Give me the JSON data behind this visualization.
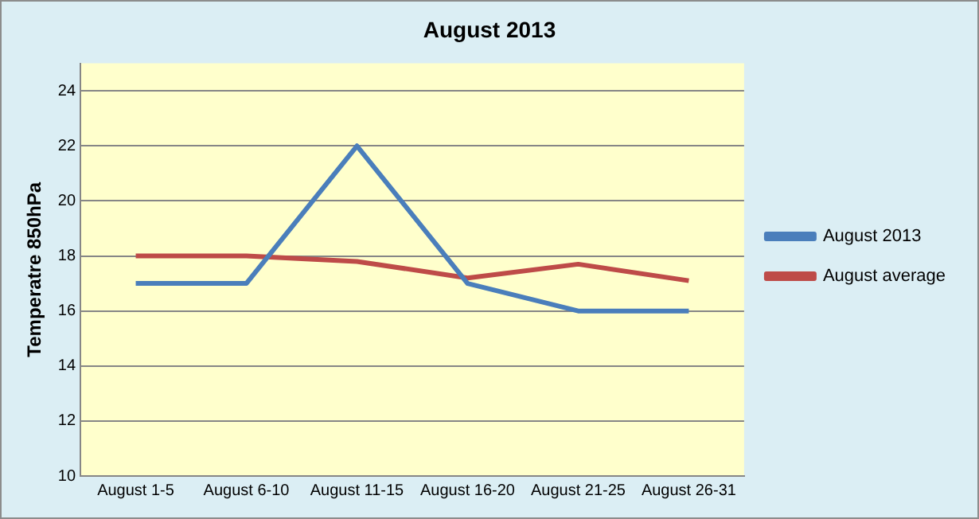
{
  "chart_data": {
    "type": "line",
    "title": "August 2013",
    "ylabel": "Temperatre 850hPa",
    "categories": [
      "August 1-5",
      "August 6-10",
      "August 11-15",
      "August 16-20",
      "August 21-25",
      "August 26-31"
    ],
    "series": [
      {
        "name": "August 2013",
        "color": "#4a7ebb",
        "values": [
          17,
          17,
          22,
          17,
          16,
          16
        ]
      },
      {
        "name": "August average",
        "color": "#be4b48",
        "values": [
          18,
          18,
          17.8,
          17.2,
          17.7,
          17.1
        ]
      }
    ],
    "ylim": [
      10,
      25
    ],
    "yticks": [
      10,
      12,
      14,
      16,
      18,
      20,
      22,
      24
    ],
    "grid": "y",
    "legend": "right",
    "marker": "none",
    "line_style": "solid"
  }
}
